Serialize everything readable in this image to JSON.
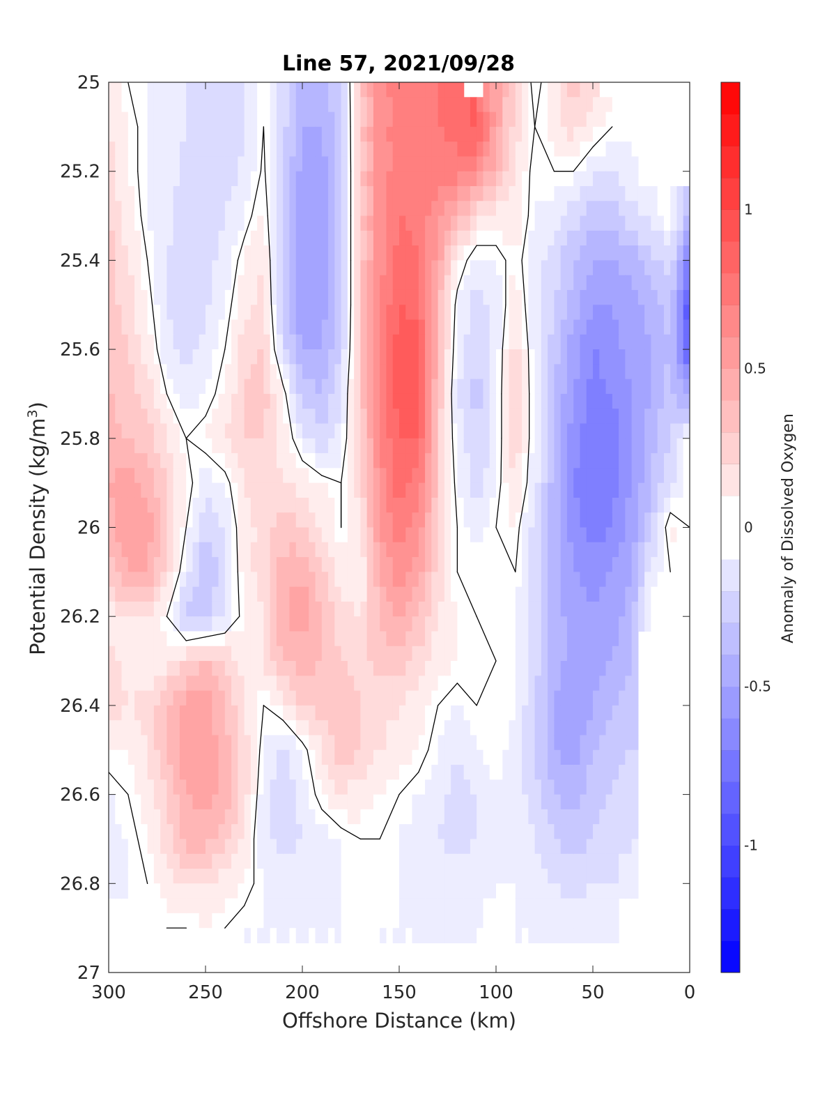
{
  "chart_data": {
    "type": "heatmap",
    "title": "Line 57, 2021/09/28",
    "xlabel": "Offshore Distance (km)",
    "ylabel_main": "Potential Density (kg/m",
    "ylabel_sup": "3",
    "ylabel_end": ")",
    "colorbar_label": "Anomaly of Dissolved Oxygen",
    "xlim": [
      300,
      0
    ],
    "ylim": [
      25,
      27
    ],
    "x_reversed": true,
    "y_reversed": true,
    "xticks": [
      300,
      250,
      200,
      150,
      100,
      50,
      0
    ],
    "xtick_labels": [
      "300",
      "250",
      "200",
      "150",
      "100",
      "50",
      "0"
    ],
    "yticks": [
      25,
      25.2,
      25.4,
      25.6,
      25.8,
      26,
      26.2,
      26.4,
      26.6,
      26.8,
      27
    ],
    "ytick_labels": [
      "25",
      "25.2",
      "25.4",
      "25.6",
      "25.8",
      "26",
      "26.2",
      "26.4",
      "26.6",
      "26.8",
      "27"
    ],
    "colorbar_range": [
      -1.4,
      1.4
    ],
    "colorbar_ticks": [
      1,
      0.5,
      0,
      -0.5,
      -1
    ],
    "colorbar_tick_labels": [
      "1",
      "0.5",
      "0",
      "-0.5",
      "-1"
    ],
    "contour_step": 0.1,
    "colormap": {
      "negative": "#0000ff",
      "zero": "#ffffff",
      "positive": "#ff0000"
    },
    "zero_contour_color": "#000000",
    "x": [
      300,
      290,
      280,
      270,
      260,
      250,
      240,
      230,
      220,
      210,
      200,
      190,
      180,
      170,
      160,
      150,
      140,
      130,
      120,
      110,
      100,
      90,
      80,
      70,
      60,
      50,
      40,
      30,
      20,
      10,
      0
    ],
    "y": [
      25,
      25.1,
      25.2,
      25.3,
      25.4,
      25.5,
      25.6,
      25.7,
      25.8,
      25.9,
      26,
      26.1,
      26.2,
      26.3,
      26.4,
      26.5,
      26.6,
      26.7,
      26.8,
      26.9,
      27
    ],
    "z": [
      [
        0.1,
        0,
        -0.05,
        -0.1,
        -0.15,
        -0.2,
        -0.22,
        -0.15,
        0,
        -0.2,
        -0.4,
        -0.4,
        -0.25,
        0.3,
        0.6,
        0.7,
        0.7,
        0.75,
        0.8,
        null,
        0.5,
        0.2,
        -0.05,
        0.1,
        0.3,
        0.2,
        null,
        null,
        null,
        null,
        null
      ],
      [
        0.15,
        0.05,
        -0.05,
        -0.1,
        -0.15,
        -0.2,
        -0.22,
        -0.18,
        0,
        -0.2,
        -0.45,
        -0.45,
        -0.28,
        0.3,
        0.6,
        0.7,
        0.72,
        0.75,
        0.8,
        0.9,
        0.5,
        0.2,
        0,
        0.1,
        0.2,
        0.1,
        0,
        null,
        null,
        null,
        null
      ],
      [
        0.2,
        0.05,
        -0.05,
        -0.1,
        -0.18,
        -0.22,
        -0.2,
        -0.12,
        0.02,
        -0.25,
        -0.5,
        -0.5,
        -0.3,
        0.3,
        0.6,
        0.7,
        0.7,
        0.7,
        0.7,
        0.6,
        0.4,
        0.15,
        -0.05,
        0,
        0,
        -0.12,
        -0.18,
        -0.05,
        null,
        null,
        null
      ],
      [
        0.25,
        0.1,
        -0.05,
        -0.12,
        -0.2,
        -0.22,
        -0.15,
        -0.05,
        0.08,
        -0.3,
        -0.55,
        -0.55,
        -0.3,
        0.3,
        0.6,
        0.75,
        0.7,
        0.6,
        0.4,
        0.2,
        0.1,
        0.1,
        -0.05,
        -0.1,
        -0.2,
        -0.3,
        -0.3,
        -0.2,
        -0.1,
        0,
        -0.4
      ],
      [
        0.3,
        0.15,
        0,
        -0.15,
        -0.22,
        -0.2,
        -0.1,
        0.05,
        0.15,
        -0.3,
        -0.55,
        -0.55,
        -0.3,
        0.3,
        0.6,
        0.8,
        0.75,
        0.5,
        0.1,
        -0.1,
        -0.05,
        0.05,
        -0.1,
        -0.2,
        -0.35,
        -0.45,
        -0.45,
        -0.4,
        -0.3,
        -0.2,
        -0.7
      ],
      [
        0.3,
        0.2,
        0.05,
        -0.15,
        -0.25,
        -0.18,
        -0.05,
        0.1,
        0.2,
        -0.3,
        -0.55,
        -0.5,
        -0.3,
        0.3,
        0.65,
        0.85,
        0.8,
        0.4,
        -0.05,
        -0.2,
        -0.1,
        0.1,
        -0.1,
        -0.25,
        -0.4,
        -0.55,
        -0.55,
        -0.5,
        -0.4,
        -0.3,
        -1.0
      ],
      [
        0.35,
        0.25,
        0.1,
        -0.1,
        -0.2,
        -0.12,
        0,
        0.2,
        0.25,
        -0.2,
        -0.45,
        -0.45,
        -0.25,
        0.3,
        0.7,
        0.9,
        0.9,
        0.4,
        -0.1,
        -0.25,
        -0.1,
        0.2,
        -0.1,
        -0.3,
        -0.5,
        -0.65,
        -0.6,
        -0.5,
        -0.45,
        -0.35,
        -0.9
      ],
      [
        0.35,
        0.3,
        0.2,
        0,
        -0.1,
        -0.05,
        0.05,
        0.25,
        0.3,
        0.05,
        -0.3,
        -0.35,
        -0.15,
        0.3,
        0.7,
        0.9,
        0.9,
        0.35,
        -0.15,
        -0.3,
        -0.1,
        0.25,
        -0.1,
        -0.35,
        -0.55,
        -0.7,
        -0.65,
        -0.55,
        -0.45,
        -0.3,
        -0.5
      ],
      [
        0.4,
        0.35,
        0.3,
        0.15,
        0,
        0.05,
        0.15,
        0.25,
        0.25,
        0.1,
        -0.1,
        -0.25,
        -0.1,
        0.25,
        0.65,
        0.85,
        0.85,
        0.3,
        -0.1,
        -0.25,
        -0.1,
        0.25,
        -0.1,
        -0.35,
        -0.6,
        -0.75,
        -0.7,
        -0.55,
        -0.4,
        -0.25,
        0
      ],
      [
        0.45,
        0.5,
        0.4,
        0.25,
        0.05,
        -0.1,
        -0.05,
        0.15,
        0.2,
        0.15,
        0.1,
        0.05,
        0,
        0.2,
        0.6,
        0.8,
        0.7,
        0.3,
        -0.05,
        -0.2,
        -0.05,
        0.15,
        -0.1,
        -0.4,
        -0.65,
        -0.75,
        -0.7,
        -0.55,
        -0.35,
        -0.2,
        0
      ],
      [
        0.4,
        0.55,
        0.5,
        0.3,
        0,
        -0.25,
        -0.15,
        0.1,
        0.2,
        0.3,
        0.25,
        0.15,
        0,
        0.15,
        0.55,
        0.7,
        0.6,
        0.25,
        0,
        -0.1,
        0,
        0.05,
        -0.2,
        -0.4,
        -0.6,
        -0.7,
        -0.65,
        -0.5,
        -0.3,
        0.1,
        0
      ],
      [
        0.3,
        0.45,
        0.45,
        0.2,
        -0.1,
        -0.35,
        -0.2,
        0.1,
        0.2,
        0.4,
        0.45,
        0.3,
        0.1,
        0.05,
        0.45,
        0.6,
        0.5,
        0.2,
        0,
        0,
        0,
        0,
        -0.2,
        -0.4,
        -0.55,
        -0.6,
        -0.55,
        -0.45,
        -0.1,
        0,
        null
      ],
      [
        0.1,
        0.15,
        0.15,
        0,
        -0.3,
        -0.3,
        -0.15,
        0.05,
        0.15,
        0.45,
        0.5,
        0.35,
        0.2,
        0.15,
        0.35,
        0.45,
        0.35,
        0.15,
        0.05,
        0,
        0,
        -0.05,
        -0.2,
        -0.4,
        -0.5,
        -0.55,
        -0.5,
        -0.4,
        0,
        null,
        null
      ],
      [
        0.2,
        0.1,
        0.05,
        0.1,
        0.25,
        0.35,
        0.25,
        0.1,
        0.15,
        0.35,
        0.4,
        0.35,
        0.25,
        0.2,
        0.3,
        0.3,
        0.2,
        0.1,
        0.05,
        0.05,
        0,
        -0.05,
        -0.2,
        -0.4,
        -0.5,
        -0.5,
        -0.45,
        -0.35,
        null,
        null,
        null
      ],
      [
        0.2,
        0.15,
        0.2,
        0.35,
        0.5,
        0.5,
        0.35,
        0.15,
        0,
        0.1,
        0.25,
        0.3,
        0.35,
        0.25,
        0.2,
        0.15,
        0.1,
        0,
        -0.05,
        0,
        0,
        -0.05,
        -0.25,
        -0.45,
        -0.55,
        -0.45,
        -0.35,
        -0.3,
        null,
        null,
        null
      ],
      [
        0.05,
        0.05,
        0.15,
        0.35,
        0.55,
        0.55,
        0.4,
        0.2,
        -0.05,
        -0.2,
        -0.05,
        0.15,
        0.3,
        0.25,
        0.15,
        0.1,
        0.05,
        -0.05,
        -0.15,
        -0.05,
        0,
        -0.1,
        -0.25,
        -0.45,
        -0.5,
        -0.35,
        -0.3,
        -0.25,
        null,
        null,
        null
      ],
      [
        -0.05,
        0,
        0.1,
        0.25,
        0.45,
        0.5,
        0.4,
        0.2,
        -0.1,
        -0.25,
        -0.1,
        0.05,
        0.15,
        0.1,
        0.05,
        0,
        -0.05,
        -0.1,
        -0.2,
        -0.15,
        -0.05,
        -0.1,
        -0.2,
        -0.35,
        -0.4,
        -0.3,
        -0.25,
        -0.2,
        null,
        null,
        null
      ],
      [
        -0.1,
        -0.05,
        0.05,
        0.2,
        0.4,
        0.4,
        0.3,
        0.1,
        -0.1,
        -0.2,
        -0.15,
        -0.1,
        -0.05,
        0,
        0,
        -0.05,
        -0.1,
        -0.15,
        -0.2,
        -0.15,
        -0.1,
        -0.1,
        -0.15,
        -0.25,
        -0.3,
        -0.25,
        -0.2,
        -0.15,
        null,
        null,
        null
      ],
      [
        -0.1,
        -0.05,
        0,
        0.1,
        0.15,
        0.15,
        0.1,
        0.05,
        -0.05,
        -0.1,
        -0.1,
        -0.1,
        -0.05,
        0,
        0,
        -0.05,
        -0.1,
        -0.1,
        -0.1,
        -0.1,
        -0.05,
        -0.05,
        -0.1,
        -0.15,
        -0.2,
        -0.15,
        -0.15,
        -0.1,
        null,
        null,
        null
      ],
      [
        null,
        null,
        null,
        0,
        0,
        0.05,
        0,
        -0.05,
        -0.05,
        -0.05,
        -0.05,
        -0.05,
        -0.05,
        0,
        -0.05,
        -0.05,
        -0.05,
        -0.1,
        -0.1,
        -0.05,
        0,
        -0.05,
        -0.05,
        -0.1,
        -0.1,
        -0.1,
        -0.1,
        null,
        null,
        null,
        null
      ],
      [
        null,
        null,
        null,
        null,
        null,
        null,
        null,
        null,
        null,
        null,
        null,
        null,
        null,
        null,
        null,
        null,
        null,
        null,
        null,
        null,
        null,
        null,
        null,
        null,
        null,
        null,
        null,
        null,
        null,
        null,
        null
      ]
    ]
  }
}
